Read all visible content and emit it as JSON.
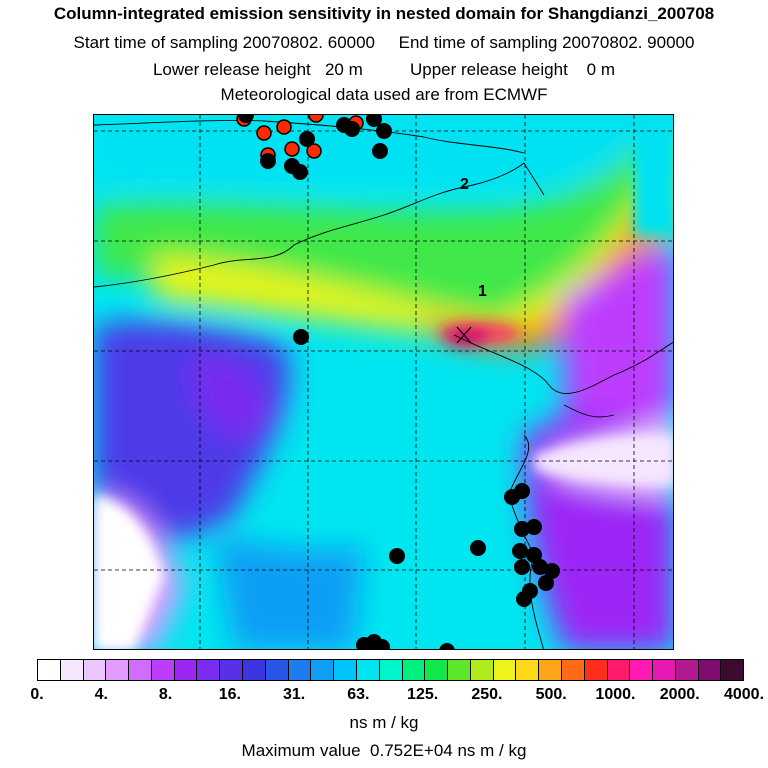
{
  "header": {
    "title": "Column-integrated emission sensitivity in nested domain for Shangdianzi_200708",
    "line2": "Start time of sampling 20070802. 60000     End time of sampling 20070802. 90000",
    "line3": "Lower release height   20 m          Upper release height    0 m",
    "line4": "Meteorological data used are from ECMWF"
  },
  "map": {
    "labels": [
      "2",
      "1"
    ],
    "marker_color": "#000000",
    "marker_alt_color": "#ff2a00"
  },
  "colorbar": {
    "colors": [
      "#ffffff",
      "#f6e6ff",
      "#eec6ff",
      "#e29cff",
      "#d36bff",
      "#bd3dff",
      "#9c27f5",
      "#7a2cf0",
      "#5a2fe8",
      "#3c35e0",
      "#2a56e8",
      "#1c7cf0",
      "#0f9ff5",
      "#00c4f8",
      "#00e6f0",
      "#00f5c8",
      "#00f080",
      "#10e84a",
      "#5ee62a",
      "#b0ec1c",
      "#eef41a",
      "#ffd81a",
      "#ffa51a",
      "#ff6a14",
      "#ff2e1a",
      "#ff1a6e",
      "#ff1ab4",
      "#e619b4",
      "#b31990",
      "#800c70",
      "#3d0a30"
    ],
    "tick_labels": [
      "0.",
      "4.",
      "8.",
      "16.",
      "31.",
      "63.",
      "125.",
      "250.",
      "500.",
      "1000.",
      "2000.",
      "4000."
    ],
    "units": "ns m / kg"
  },
  "footer": {
    "max_value": "Maximum value  0.752E+04 ns m / kg"
  }
}
